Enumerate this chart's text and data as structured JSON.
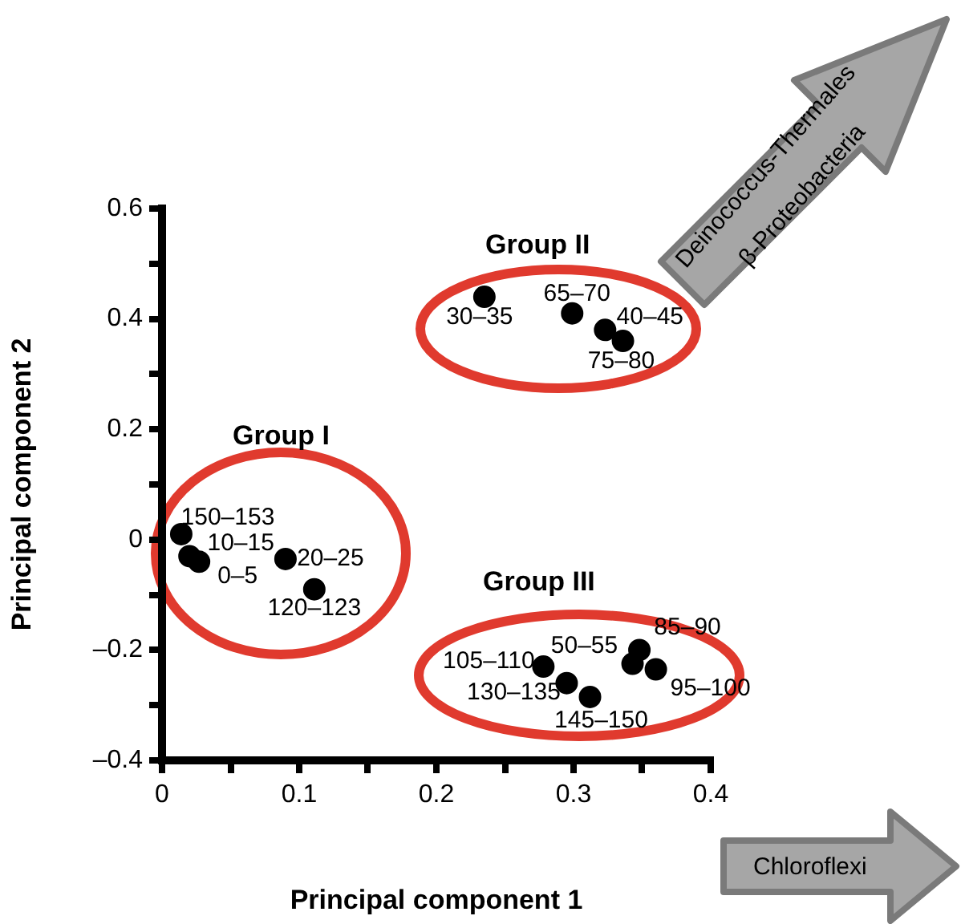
{
  "chart_data": {
    "type": "scatter",
    "xlabel": "Principal component 1",
    "ylabel": "Principal component 2",
    "x": [
      0.014,
      0.02,
      0.027,
      0.09,
      0.111,
      0.235,
      0.299,
      0.323,
      0.336,
      0.278,
      0.295,
      0.312,
      0.343,
      0.348,
      0.36
    ],
    "values": [
      0.01,
      -0.03,
      -0.04,
      -0.035,
      -0.09,
      0.44,
      0.41,
      0.38,
      0.36,
      -0.23,
      -0.26,
      -0.285,
      -0.225,
      -0.2,
      -0.235
    ],
    "color": "#000000",
    "marker": "circle",
    "grid": false,
    "legend": false,
    "xlim": [
      0,
      0.4
    ],
    "ylim": [
      -0.4,
      0.6
    ],
    "xticks": [
      0,
      {
        "value": 0.05,
        "label": null
      },
      0.1,
      {
        "value": 0.15,
        "label": null
      },
      0.2,
      {
        "value": 0.25,
        "label": null
      },
      0.3,
      {
        "value": 0.35,
        "label": null
      },
      0.4
    ],
    "yticks": [
      {
        "value": -0.4,
        "label": "–0.4"
      },
      {
        "value": -0.3,
        "label": null
      },
      {
        "value": -0.2,
        "label": "–0.2"
      },
      {
        "value": -0.1,
        "label": null
      },
      0,
      {
        "value": 0.1,
        "label": null
      },
      0.2,
      {
        "value": 0.3,
        "label": null
      },
      0.4,
      {
        "value": 0.5,
        "label": null
      },
      0.6
    ],
    "annotations": [
      {
        "text": "150–153",
        "x": 0.014,
        "y": 0.01
      },
      {
        "text": "10–15",
        "x": 0.02,
        "y": -0.03
      },
      {
        "text": "0–5",
        "x": 0.027,
        "y": -0.04
      },
      {
        "text": "20–25",
        "x": 0.09,
        "y": -0.035
      },
      {
        "text": "120–123",
        "x": 0.111,
        "y": -0.09
      },
      {
        "text": "30–35",
        "x": 0.235,
        "y": 0.44
      },
      {
        "text": "65–70",
        "x": 0.299,
        "y": 0.41
      },
      {
        "text": "40–45",
        "x": 0.323,
        "y": 0.38
      },
      {
        "text": "75–80",
        "x": 0.336,
        "y": 0.36
      },
      {
        "text": "105–110",
        "x": 0.278,
        "y": -0.23
      },
      {
        "text": "130–135",
        "x": 0.295,
        "y": -0.26
      },
      {
        "text": "145–150",
        "x": 0.312,
        "y": -0.285
      },
      {
        "text": "50–55",
        "x": 0.343,
        "y": -0.225
      },
      {
        "text": "85–90",
        "x": 0.348,
        "y": -0.2
      },
      {
        "text": "95–100",
        "x": 0.36,
        "y": -0.235
      },
      "Group I",
      "Group II",
      "Group III",
      "Deinococcus-Thermales",
      "β-Proteobacteria",
      "Chloroflexi"
    ]
  }
}
